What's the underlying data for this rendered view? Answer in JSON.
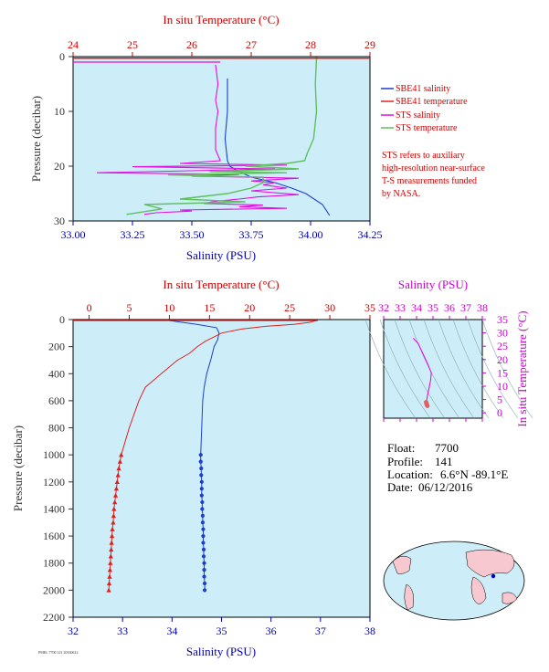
{
  "colors": {
    "plot_bg": "#cdeef8",
    "temp_axis": "#cc0000",
    "sal_axis": "#0000aa",
    "pressure_axis": "#333333",
    "ts_axis": "#cc00cc",
    "sbe_sal": "#1a3fd0",
    "sbe_temp": "#e02020",
    "sts_sal": "#e010e0",
    "sts_temp": "#60c060"
  },
  "info": {
    "float_label": "Float:",
    "float_value": "7700",
    "profile_label": "Profile:",
    "profile_value": "141",
    "location_label": "Location:",
    "location_value": "6.6°N -89.1°E",
    "date_label": "Date:",
    "date_value": "06/12/2016"
  },
  "legend": {
    "items": [
      "SBE41 salinity",
      "SBE41 temperature",
      "STS salinity",
      "STS temperature"
    ],
    "note": [
      "STS refers to auxiliary",
      "high-resolution near-surface",
      "T-S measurements funded",
      "by NASA."
    ]
  },
  "stamp": "PMEL 7700 141 20160612",
  "chart_data": [
    {
      "type": "line",
      "id": "near-surface",
      "top_xlabel": "In situ Temperature (°C)",
      "xlabel": "Salinity (PSU)",
      "ylabel": "Pressure (decibar)",
      "temp_ticks": [
        "24",
        "25",
        "26",
        "27",
        "28",
        "29"
      ],
      "sal_ticks": [
        "33.00",
        "33.25",
        "33.50",
        "33.75",
        "34.00",
        "34.25"
      ],
      "pres_ticks": [
        "0",
        "10",
        "20",
        "30"
      ],
      "temp_lim": [
        24,
        29
      ],
      "sal_lim": [
        33.0,
        34.25
      ],
      "pres_lim": [
        0,
        30
      ],
      "series": [
        {
          "name": "SBE41 salinity",
          "color": "#1a3fd0",
          "x": [
            33.65,
            33.65,
            33.64,
            33.65,
            33.66,
            33.7,
            33.75,
            33.85,
            33.92,
            33.98,
            34.05,
            34.08
          ],
          "y": [
            4,
            10,
            15,
            19,
            20,
            21,
            22,
            23,
            24,
            25,
            27,
            29
          ]
        },
        {
          "name": "SBE41 temperature",
          "color": "#e02020",
          "x": [
            28.1,
            28.1
          ],
          "y": [
            0.1,
            0.5
          ]
        },
        {
          "name": "STS salinity",
          "color": "#e010e0",
          "x": [
            33.6,
            33.61,
            33.6,
            33.61,
            33.6,
            33.6,
            33.62,
            33.45,
            33.9,
            33.25,
            33.85,
            33.1,
            33.7,
            33.5,
            33.95,
            33.75,
            33.85,
            33.8,
            33.9,
            33.75,
            33.95,
            33.78,
            33.7,
            33.6,
            33.55,
            33.8,
            33.7,
            33.9,
            33.45,
            33.5,
            33.35,
            33.3
          ],
          "y": [
            1.5,
            5,
            8,
            10,
            13,
            17,
            19,
            19.5,
            19.8,
            20.1,
            20.5,
            21.2,
            21.5,
            21.8,
            22.2,
            22.7,
            23,
            23.4,
            24,
            24.5,
            25.2,
            25.6,
            26,
            26.4,
            26.8,
            27.1,
            27.4,
            27.7,
            28,
            28.2,
            28.5,
            28.8
          ]
        },
        {
          "name": "STS temperature",
          "color": "#60c060",
          "x": [
            28.1,
            28.08,
            28.1,
            28.05,
            27.95,
            27.9,
            27.6,
            26.9,
            27.8,
            26.3,
            27.6,
            25.6,
            27.2,
            27.2,
            27.0,
            26.6,
            25.8,
            26.9,
            25.2,
            25.5,
            24.9
          ],
          "y": [
            0.3,
            5,
            10,
            15,
            17.5,
            19,
            19.5,
            20,
            20.5,
            21,
            21.2,
            21.6,
            22,
            23,
            24,
            25,
            26,
            26.5,
            27,
            27.8,
            28.8
          ]
        }
      ]
    },
    {
      "type": "line",
      "id": "full-profile",
      "top_xlabel": "In situ Temperature (°C)",
      "xlabel": "Salinity (PSU)",
      "ylabel": "Pressure (decibar)",
      "temp_ticks": [
        "0",
        "5",
        "10",
        "15",
        "20",
        "25",
        "30",
        "35"
      ],
      "sal_ticks": [
        "32",
        "33",
        "34",
        "35",
        "36",
        "37",
        "38"
      ],
      "pres_ticks": [
        "0",
        "200",
        "400",
        "600",
        "800",
        "1000",
        "1200",
        "1400",
        "1600",
        "1800",
        "2000",
        "2200"
      ],
      "temp_lim": [
        -2,
        35
      ],
      "sal_lim": [
        32,
        38
      ],
      "pres_lim": [
        0,
        2200
      ],
      "series": [
        {
          "name": "salinity",
          "x": [
            33.9,
            34.2,
            34.5,
            34.9,
            34.95,
            34.92,
            34.85,
            34.78,
            34.7,
            34.65,
            34.62,
            34.6,
            34.58
          ],
          "y": [
            5,
            20,
            35,
            60,
            100,
            150,
            200,
            300,
            400,
            500,
            600,
            800,
            1000
          ]
        },
        {
          "name": "temperature",
          "x": [
            28.5,
            27.5,
            25.5,
            22,
            19,
            16.5,
            15.5,
            14.5,
            13.5,
            12.5,
            11,
            9,
            8,
            7,
            6.2,
            5,
            4
          ],
          "y": [
            5,
            20,
            35,
            50,
            70,
            100,
            130,
            160,
            200,
            250,
            300,
            400,
            450,
            500,
            600,
            800,
            1000
          ]
        },
        {
          "name": "salinity-points",
          "x": [
            34.58,
            34.58,
            34.59,
            34.59,
            34.6,
            34.6,
            34.6,
            34.61,
            34.61,
            34.62,
            34.62,
            34.63,
            34.63,
            34.63,
            34.64,
            34.64,
            34.65,
            34.65,
            34.65,
            34.66,
            34.66
          ],
          "y": [
            1000,
            1050,
            1100,
            1150,
            1200,
            1250,
            1300,
            1350,
            1400,
            1450,
            1500,
            1550,
            1600,
            1650,
            1700,
            1750,
            1800,
            1850,
            1900,
            1950,
            2000
          ]
        },
        {
          "name": "temperature-points",
          "x": [
            4.0,
            3.85,
            3.7,
            3.6,
            3.5,
            3.4,
            3.3,
            3.2,
            3.1,
            3.05,
            3.0,
            2.9,
            2.85,
            2.8,
            2.75,
            2.7,
            2.65,
            2.6,
            2.55,
            2.5,
            2.45
          ],
          "y": [
            1000,
            1050,
            1100,
            1150,
            1200,
            1250,
            1300,
            1350,
            1400,
            1450,
            1500,
            1550,
            1600,
            1650,
            1700,
            1750,
            1800,
            1850,
            1900,
            1950,
            2000
          ]
        }
      ]
    },
    {
      "type": "scatter",
      "id": "ts-diagram",
      "top_xlabel": "Salinity (PSU)",
      "ylabel": "In situ Temperature (°C)",
      "sal_ticks": [
        "32",
        "33",
        "34",
        "35",
        "36",
        "37",
        "38"
      ],
      "temp_ticks": [
        "0",
        "5",
        "10",
        "15",
        "20",
        "25",
        "30",
        "35"
      ],
      "sal_lim": [
        32,
        38
      ],
      "temp_lim": [
        -2,
        35
      ],
      "series": [
        {
          "name": "ts-line",
          "x": [
            33.8,
            34.1,
            34.4,
            34.7,
            34.9,
            34.85,
            34.75,
            34.65,
            34.6
          ],
          "y": [
            28,
            26,
            22,
            18,
            15,
            12,
            9,
            6,
            4
          ]
        },
        {
          "name": "ts-points",
          "x": [
            34.58,
            34.6,
            34.62,
            34.64,
            34.66,
            34.6,
            34.63
          ],
          "y": [
            4,
            3.6,
            3.2,
            2.9,
            2.6,
            3.4,
            3.0
          ]
        }
      ]
    }
  ]
}
